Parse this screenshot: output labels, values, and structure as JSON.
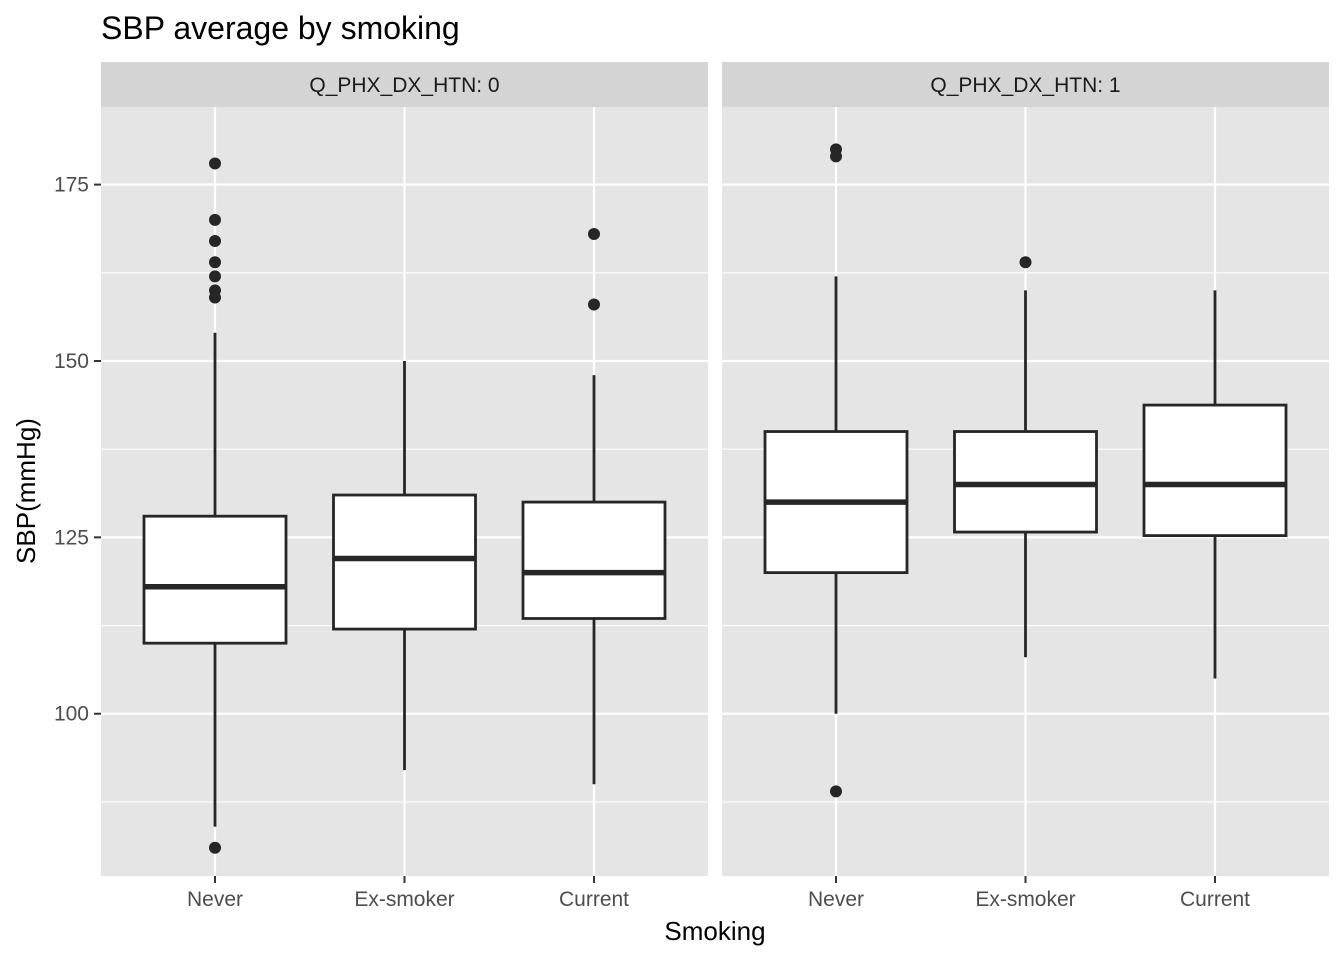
{
  "chart_data": {
    "type": "boxplot",
    "title": "SBP average by smoking",
    "xlabel": "Smoking",
    "ylabel": "SBP(mmHg)",
    "categories": [
      "Never",
      "Ex-smoker",
      "Current"
    ],
    "ylim": [
      77,
      186
    ],
    "yticks": [
      100,
      125,
      150,
      175
    ],
    "grid": true,
    "facet_variable": "Q_PHX_DX_HTN",
    "facets": [
      {
        "label": "Q_PHX_DX_HTN: 0",
        "boxes": [
          {
            "category": "Never",
            "whisker_low": 84,
            "q1": 110,
            "median": 118,
            "q3": 128,
            "whisker_high": 154,
            "outliers": [
              81,
              159,
              160,
              162,
              164,
              167,
              170,
              178
            ]
          },
          {
            "category": "Ex-smoker",
            "whisker_low": 92,
            "q1": 112,
            "median": 122,
            "q3": 131,
            "whisker_high": 150,
            "outliers": []
          },
          {
            "category": "Current",
            "whisker_low": 90,
            "q1": 113.5,
            "median": 120,
            "q3": 130,
            "whisker_high": 148,
            "outliers": [
              158,
              168
            ]
          }
        ]
      },
      {
        "label": "Q_PHX_DX_HTN: 1",
        "boxes": [
          {
            "category": "Never",
            "whisker_low": 100,
            "q1": 120,
            "median": 130,
            "q3": 140,
            "whisker_high": 162,
            "outliers": [
              89,
              179,
              180
            ]
          },
          {
            "category": "Ex-smoker",
            "whisker_low": 108,
            "q1": 125.75,
            "median": 132.5,
            "q3": 140,
            "whisker_high": 160,
            "outliers": [
              164
            ]
          },
          {
            "category": "Current",
            "whisker_low": 105,
            "q1": 125.25,
            "median": 132.5,
            "q3": 143.75,
            "whisker_high": 160,
            "outliers": []
          }
        ]
      }
    ],
    "colors": {
      "panel_background": "#e5e5e5",
      "strip_background": "#d4d4d4",
      "grid": "#ffffff",
      "box_fill": "#ffffff",
      "box_line": "#262626",
      "point": "#262626",
      "tick_text": "#4d4d4d"
    }
  }
}
